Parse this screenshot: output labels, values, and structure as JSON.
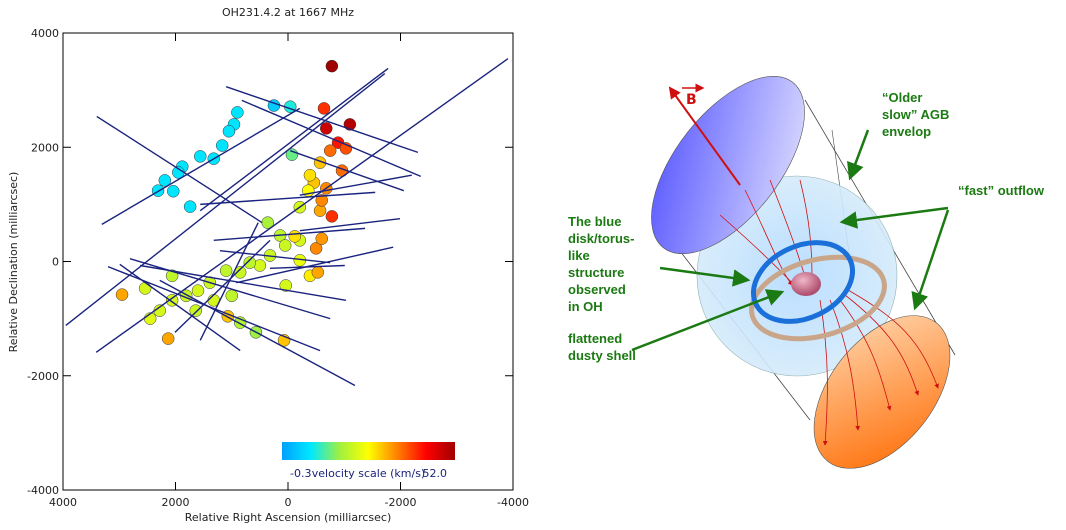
{
  "chart_data": {
    "type": "scatter",
    "title": "OH231.4.2 at 1667 MHz",
    "xlabel": "Relative Right Ascension (milliarcsec)",
    "ylabel": "Relative Declination (milliarcsec)",
    "xlim": [
      4000,
      -4000
    ],
    "xticks": [
      4000,
      2000,
      0,
      -2000,
      -4000
    ],
    "ylim": [
      -4000,
      4000
    ],
    "yticks": [
      -4000,
      -2000,
      0,
      2000,
      4000
    ],
    "x": [
      900,
      960,
      1050,
      1170,
      1320,
      1560,
      1880,
      1950,
      2190,
      2310,
      2040,
      1740,
      250,
      -40,
      -70,
      -780,
      -640,
      -680,
      -1100,
      -890,
      -1030,
      -750,
      -570,
      -960,
      -460,
      -360,
      -680,
      -210,
      -570,
      -780,
      -600,
      -390,
      360,
      140,
      -210,
      320,
      500,
      680,
      850,
      1100,
      1390,
      1600,
      1810,
      2060,
      2280,
      2450,
      2540,
      2060,
      1640,
      1320,
      850,
      570,
      1000,
      -210,
      -390,
      50,
      40,
      2950,
      2130,
      1070,
      70,
      -530,
      -500,
      -600,
      -120
    ],
    "y": [
      2610,
      2400,
      2280,
      2030,
      1800,
      1840,
      1660,
      1560,
      1420,
      1240,
      1230,
      960,
      2730,
      2710,
      1870,
      3420,
      2680,
      2330,
      2400,
      2080,
      1980,
      1940,
      1730,
      1590,
      1380,
      1240,
      1280,
      950,
      890,
      790,
      1070,
      1510,
      680,
      455,
      370,
      105,
      -70,
      -20,
      -190,
      -160,
      -370,
      -510,
      -600,
      -680,
      -860,
      -1000,
      -470,
      -250,
      -860,
      -680,
      -1070,
      -1240,
      -600,
      20,
      -250,
      280,
      -420,
      -580,
      -1350,
      -960,
      -1380,
      -190,
      230,
      400,
      440
    ],
    "velocities": [
      8,
      8,
      8,
      8,
      8,
      8,
      8,
      8,
      8,
      8,
      8,
      8,
      5,
      10,
      14,
      52,
      40,
      48,
      50,
      42,
      38,
      36,
      30,
      36,
      30,
      26,
      34,
      22,
      32,
      40,
      34,
      28,
      18,
      20,
      22,
      21,
      22,
      20,
      21,
      20,
      21,
      22,
      21,
      22,
      22,
      23,
      22,
      20,
      21,
      22,
      19,
      17,
      20,
      24,
      27,
      21,
      22,
      32,
      32,
      30,
      30,
      32,
      34,
      33,
      28
    ],
    "vectors": [
      [
        3400,
        2540,
        460,
        680
      ],
      [
        3310,
        650,
        -210,
        2680
      ],
      [
        1560,
        890,
        -1780,
        3380
      ],
      [
        1100,
        3060,
        -2310,
        1910
      ],
      [
        820,
        2820,
        -2360,
        1490
      ],
      [
        3950,
        -1120,
        -1720,
        3290
      ],
      [
        3410,
        -1590,
        -3910,
        3550
      ],
      [
        1560,
        1000,
        -1550,
        1210
      ],
      [
        2990,
        -50,
        850,
        -1560
      ],
      [
        2810,
        50,
        -750,
        -1000
      ],
      [
        3200,
        -90,
        -570,
        -1560
      ],
      [
        2280,
        -330,
        -1190,
        -2170
      ],
      [
        2630,
        -70,
        -1030,
        -680
      ],
      [
        1560,
        -1380,
        530,
        680
      ],
      [
        2010,
        -1240,
        320,
        370
      ],
      [
        920,
        -370,
        -1870,
        250
      ],
      [
        -210,
        540,
        -1990,
        750
      ],
      [
        320,
        -120,
        -1010,
        -70
      ],
      [
        1210,
        190,
        -750,
        -20
      ],
      [
        1320,
        370,
        -1370,
        580
      ],
      [
        -210,
        1160,
        -2200,
        1510
      ],
      [
        -40,
        1940,
        -2060,
        1240
      ]
    ],
    "vector_color": "#1a237e",
    "colorbar": {
      "label": "velocity scale (km/s)",
      "lim": [
        -0.3,
        52
      ],
      "ticks": [
        -0.3,
        {
          "value": 52,
          "label": "52.0"
        }
      ],
      "colors": [
        "#00a0ff",
        "#00e8ff",
        "#a0f040",
        "#ffff00",
        "#ff8000",
        "#ff0000",
        "#a00000"
      ]
    }
  },
  "diagram": {
    "field_label": "B",
    "envelope_label": [
      "“Older",
      "slow” AGB",
      "envelop"
    ],
    "outflow_label": "“fast” outflow",
    "torus_label": [
      "The blue",
      "disk/torus-",
      "like",
      "structure",
      "observed",
      "in OH"
    ],
    "shell_label": [
      "flattened",
      "dusty shell"
    ]
  }
}
